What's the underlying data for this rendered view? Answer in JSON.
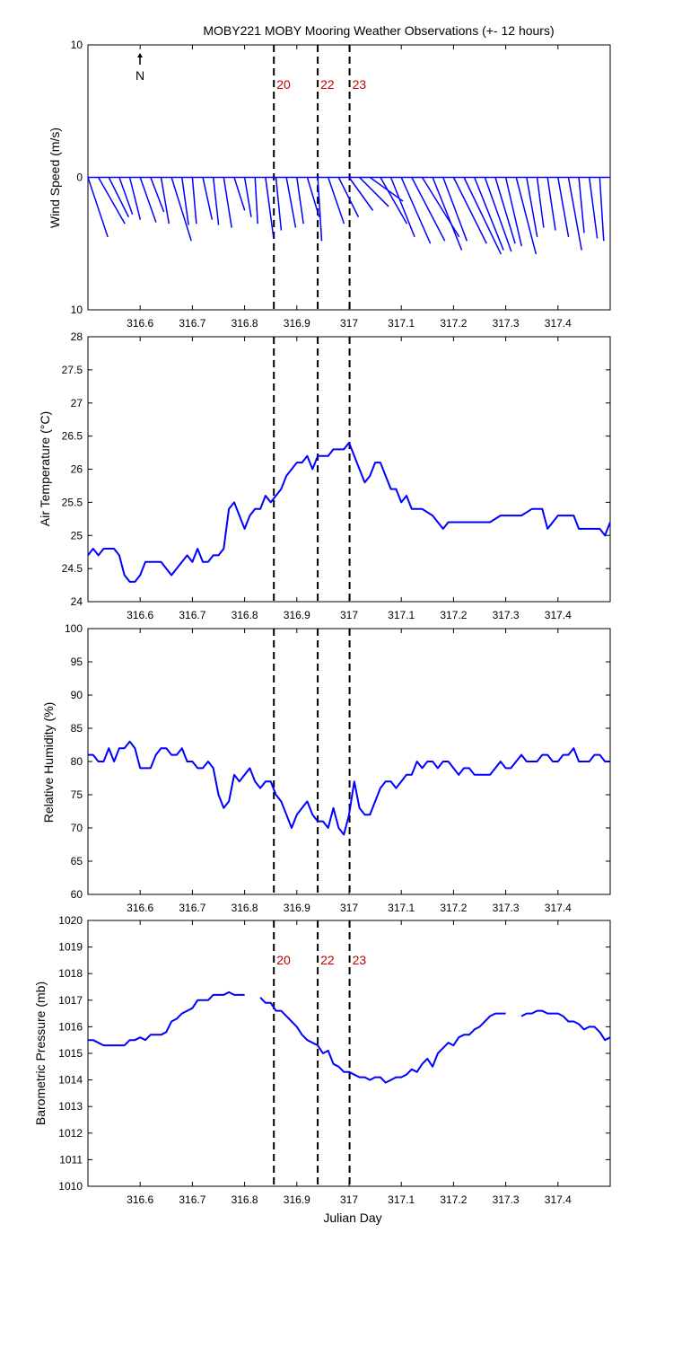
{
  "title": "MOBY221 MOBY Mooring Weather Observations (+- 12 hours)",
  "xlabel": "Julian Day",
  "north_label": "N",
  "colors": {
    "series": "#0000ff",
    "marker_text": "#c00000",
    "axes": "#000000",
    "markers": "#000000"
  },
  "chart_data": [
    {
      "id": "wind",
      "type": "line",
      "subtype": "wind-stick",
      "ylabel": "Wind Speed (m/s)",
      "xlim": [
        316.5,
        317.5
      ],
      "ylim": [
        -10,
        10
      ],
      "xticks": [
        316.6,
        316.7,
        316.8,
        316.9,
        317,
        317.1,
        317.2,
        317.3,
        317.4
      ],
      "xtick_labels": [
        "316.6",
        "316.7",
        "316.8",
        "316.9",
        "317",
        "317.1",
        "317.2",
        "317.3",
        "317.4"
      ],
      "yticks": [
        10,
        0,
        -10
      ],
      "ytick_labels": [
        "10",
        "0",
        "10"
      ],
      "markers": [
        316.856,
        316.94,
        317.001
      ],
      "marker_labels": [
        "20",
        "22",
        "23"
      ],
      "series": [
        {
          "x": [
            316.5,
            316.52,
            316.54,
            316.56,
            316.58,
            316.6,
            316.62,
            316.64,
            316.66,
            316.68,
            316.7,
            316.72,
            316.74,
            316.76,
            316.78,
            316.8,
            316.82,
            316.84,
            316.86,
            316.88,
            316.9,
            316.92,
            316.94,
            316.96,
            316.98,
            317.0,
            317.02,
            317.04,
            317.06,
            317.08,
            317.1,
            317.12,
            317.14,
            317.16,
            317.18,
            317.2,
            317.22,
            317.24,
            317.26,
            317.28,
            317.3,
            317.32,
            317.34,
            317.36,
            317.38,
            317.4,
            317.42,
            317.44,
            317.46,
            317.48
          ],
          "u": [
            1.5,
            2,
            1.5,
            1,
            0.8,
            1.2,
            1,
            0.6,
            1.5,
            0.5,
            0.3,
            0.7,
            0.4,
            0.6,
            0.8,
            0.5,
            0.2,
            0.6,
            0.4,
            0.7,
            0.5,
            0.9,
            0.3,
            1.2,
            1.5,
            1.8,
            2.2,
            2.5,
            2,
            1.8,
            2.2,
            2.5,
            2.8,
            2.2,
            1.8,
            2.5,
            2.8,
            2.2,
            2,
            1.5,
            1.2,
            1.5,
            0.8,
            0.5,
            0.6,
            0.8,
            1,
            0.4,
            0.6,
            0.3
          ],
          "v": [
            -4.5,
            -3.5,
            -3,
            -2.8,
            -3.2,
            -3.4,
            -2.6,
            -3.5,
            -4.8,
            -3.6,
            -3.5,
            -3.2,
            -3.6,
            -3.8,
            -2.5,
            -3,
            -3.5,
            -4.5,
            -4,
            -3.8,
            -3.5,
            -3,
            -4.8,
            -3.5,
            -3,
            -2.5,
            -2.2,
            -1.8,
            -3.5,
            -4.5,
            -5,
            -4.8,
            -4.5,
            -5.5,
            -4.8,
            -5,
            -5.8,
            -5.5,
            -5.6,
            -5,
            -5.2,
            -5.8,
            -4.5,
            -3.8,
            -4,
            -4.5,
            -5.5,
            -4.2,
            -4.6,
            -4.8
          ]
        }
      ]
    },
    {
      "id": "air-temperature",
      "type": "line",
      "ylabel": "Air Temperature (°C)",
      "xlim": [
        316.5,
        317.5
      ],
      "ylim": [
        24,
        28
      ],
      "xticks": [
        316.6,
        316.7,
        316.8,
        316.9,
        317,
        317.1,
        317.2,
        317.3,
        317.4
      ],
      "xtick_labels": [
        "316.6",
        "316.7",
        "316.8",
        "316.9",
        "317",
        "317.1",
        "317.2",
        "317.3",
        "317.4"
      ],
      "yticks": [
        24,
        24.5,
        25,
        25.5,
        26,
        26.5,
        27,
        27.5,
        28
      ],
      "ytick_labels": [
        "24",
        "24.5",
        "25",
        "25.5",
        "26",
        "26.5",
        "27",
        "27.5",
        "28"
      ],
      "markers": [
        316.856,
        316.94,
        317.001
      ],
      "series": [
        {
          "x": [
            316.5,
            316.51,
            316.52,
            316.53,
            316.55,
            316.56,
            316.57,
            316.58,
            316.59,
            316.6,
            316.61,
            316.62,
            316.64,
            316.65,
            316.66,
            316.67,
            316.69,
            316.7,
            316.71,
            316.72,
            316.73,
            316.74,
            316.75,
            316.76,
            316.77,
            316.78,
            316.79,
            316.8,
            316.81,
            316.82,
            316.83,
            316.84,
            316.85,
            316.86,
            316.87,
            316.88,
            316.89,
            316.9,
            316.91,
            316.92,
            316.93,
            316.94,
            316.95,
            316.96,
            316.97,
            316.98,
            316.99,
            317.0,
            317.01,
            317.02,
            317.03,
            317.04,
            317.05,
            317.06,
            317.07,
            317.08,
            317.09,
            317.1,
            317.11,
            317.12,
            317.13,
            317.14,
            317.16,
            317.17,
            317.18,
            317.19,
            317.2,
            317.22,
            317.24,
            317.26,
            317.27,
            317.29,
            317.3,
            317.32,
            317.33,
            317.35,
            317.36,
            317.37,
            317.38,
            317.4,
            317.42,
            317.43,
            317.44,
            317.46,
            317.47,
            317.48,
            317.49,
            317.5
          ],
          "y": [
            24.7,
            24.8,
            24.7,
            24.8,
            24.8,
            24.7,
            24.4,
            24.3,
            24.3,
            24.4,
            24.6,
            24.6,
            24.6,
            24.5,
            24.4,
            24.5,
            24.7,
            24.6,
            24.8,
            24.6,
            24.6,
            24.7,
            24.7,
            24.8,
            25.4,
            25.5,
            25.3,
            25.1,
            25.3,
            25.4,
            25.4,
            25.6,
            25.5,
            25.6,
            25.7,
            25.9,
            26.0,
            26.1,
            26.1,
            26.2,
            26.0,
            26.2,
            26.2,
            26.2,
            26.3,
            26.3,
            26.3,
            26.4,
            26.2,
            26.0,
            25.8,
            25.9,
            26.1,
            26.1,
            25.9,
            25.7,
            25.7,
            25.5,
            25.6,
            25.4,
            25.4,
            25.4,
            25.3,
            25.2,
            25.1,
            25.2,
            25.2,
            25.2,
            25.2,
            25.2,
            25.2,
            25.3,
            25.3,
            25.3,
            25.3,
            25.4,
            25.4,
            25.4,
            25.1,
            25.3,
            25.3,
            25.3,
            25.1,
            25.1,
            25.1,
            25.1,
            25.0,
            25.2
          ]
        }
      ]
    },
    {
      "id": "relative-humidity",
      "type": "line",
      "ylabel": "Relative Humidity (%)",
      "xlim": [
        316.5,
        317.5
      ],
      "ylim": [
        60,
        100
      ],
      "xticks": [
        316.6,
        316.7,
        316.8,
        316.9,
        317,
        317.1,
        317.2,
        317.3,
        317.4
      ],
      "xtick_labels": [
        "316.6",
        "316.7",
        "316.8",
        "316.9",
        "317",
        "317.1",
        "317.2",
        "317.3",
        "317.4"
      ],
      "yticks": [
        60,
        65,
        70,
        75,
        80,
        85,
        90,
        95,
        100
      ],
      "ytick_labels": [
        "60",
        "65",
        "70",
        "75",
        "80",
        "85",
        "90",
        "95",
        "100"
      ],
      "markers": [
        316.856,
        316.94,
        317.001
      ],
      "series": [
        {
          "x": [
            316.5,
            316.51,
            316.52,
            316.53,
            316.54,
            316.55,
            316.56,
            316.57,
            316.58,
            316.59,
            316.6,
            316.61,
            316.62,
            316.63,
            316.64,
            316.65,
            316.66,
            316.67,
            316.68,
            316.69,
            316.7,
            316.71,
            316.72,
            316.73,
            316.74,
            316.75,
            316.76,
            316.77,
            316.78,
            316.79,
            316.8,
            316.81,
            316.82,
            316.83,
            316.84,
            316.85,
            316.86,
            316.87,
            316.88,
            316.89,
            316.9,
            316.91,
            316.92,
            316.93,
            316.94,
            316.95,
            316.96,
            316.97,
            316.98,
            316.99,
            317.0,
            317.01,
            317.02,
            317.03,
            317.04,
            317.05,
            317.06,
            317.07,
            317.08,
            317.09,
            317.1,
            317.11,
            317.12,
            317.13,
            317.14,
            317.15,
            317.16,
            317.17,
            317.18,
            317.19,
            317.2,
            317.21,
            317.22,
            317.23,
            317.24,
            317.25,
            317.26,
            317.27,
            317.28,
            317.29,
            317.3,
            317.31,
            317.32,
            317.33,
            317.34,
            317.35,
            317.36,
            317.37,
            317.38,
            317.39,
            317.4,
            317.41,
            317.42,
            317.43,
            317.44,
            317.45,
            317.46,
            317.47,
            317.48,
            317.49,
            317.5
          ],
          "y": [
            81,
            81,
            80,
            80,
            82,
            80,
            82,
            82,
            83,
            82,
            79,
            79,
            79,
            81,
            82,
            82,
            81,
            81,
            82,
            80,
            80,
            79,
            79,
            80,
            79,
            75,
            73,
            74,
            78,
            77,
            78,
            79,
            77,
            76,
            77,
            77,
            75,
            74,
            72,
            70,
            72,
            73,
            74,
            72,
            71,
            71,
            70,
            73,
            70,
            69,
            72,
            77,
            73,
            72,
            72,
            74,
            76,
            77,
            77,
            76,
            77,
            78,
            78,
            80,
            79,
            80,
            80,
            79,
            80,
            80,
            79,
            78,
            79,
            79,
            78,
            78,
            78,
            78,
            79,
            80,
            79,
            79,
            80,
            81,
            80,
            80,
            80,
            81,
            81,
            80,
            80,
            81,
            81,
            82,
            80,
            80,
            80,
            81,
            81,
            80,
            80
          ]
        }
      ]
    },
    {
      "id": "barometric-pressure",
      "type": "line",
      "ylabel": "Barometric Pressure (mb)",
      "xlim": [
        316.5,
        317.5
      ],
      "ylim": [
        1010,
        1020
      ],
      "xticks": [
        316.6,
        316.7,
        316.8,
        316.9,
        317,
        317.1,
        317.2,
        317.3,
        317.4
      ],
      "xtick_labels": [
        "316.6",
        "316.7",
        "316.8",
        "316.9",
        "317",
        "317.1",
        "317.2",
        "317.3",
        "317.4"
      ],
      "yticks": [
        1010,
        1011,
        1012,
        1013,
        1014,
        1015,
        1016,
        1017,
        1018,
        1019,
        1020
      ],
      "ytick_labels": [
        "1010",
        "1011",
        "1012",
        "1013",
        "1014",
        "1015",
        "1016",
        "1017",
        "1018",
        "1019",
        "1020"
      ],
      "markers": [
        316.856,
        316.94,
        317.001
      ],
      "marker_labels": [
        "20",
        "22",
        "23"
      ],
      "series": [
        {
          "segments": [
            {
              "x": [
                316.5,
                316.51,
                316.52,
                316.53,
                316.54,
                316.55,
                316.56,
                316.57,
                316.58,
                316.59,
                316.6,
                316.61,
                316.62,
                316.63,
                316.64,
                316.65,
                316.66,
                316.67,
                316.68,
                316.69,
                316.7,
                316.71,
                316.72,
                316.73,
                316.74,
                316.75,
                316.76,
                316.77,
                316.78,
                316.79,
                316.8
              ],
              "y": [
                1015.5,
                1015.5,
                1015.4,
                1015.3,
                1015.3,
                1015.3,
                1015.3,
                1015.3,
                1015.5,
                1015.5,
                1015.6,
                1015.5,
                1015.7,
                1015.7,
                1015.7,
                1015.8,
                1016.2,
                1016.3,
                1016.5,
                1016.6,
                1016.7,
                1017.0,
                1017.0,
                1017.0,
                1017.2,
                1017.2,
                1017.2,
                1017.3,
                1017.2,
                1017.2,
                1017.2
              ]
            },
            {
              "x": [
                316.83,
                316.84,
                316.85,
                316.86,
                316.87,
                316.88,
                316.89,
                316.9,
                316.91,
                316.92,
                316.93,
                316.94,
                316.95,
                316.96,
                316.97,
                316.98,
                316.99,
                317.0,
                317.01,
                317.02,
                317.03,
                317.04,
                317.05,
                317.06,
                317.07,
                317.08,
                317.09,
                317.1,
                317.11,
                317.12,
                317.13,
                317.14,
                317.15,
                317.16,
                317.17,
                317.18,
                317.19,
                317.2,
                317.21,
                317.22,
                317.23,
                317.24,
                317.25,
                317.26,
                317.27,
                317.28,
                317.29,
                317.3
              ],
              "y": [
                1017.1,
                1016.9,
                1016.9,
                1016.6,
                1016.6,
                1016.4,
                1016.2,
                1016.0,
                1015.7,
                1015.5,
                1015.4,
                1015.3,
                1015.0,
                1015.1,
                1014.6,
                1014.5,
                1014.3,
                1014.3,
                1014.2,
                1014.1,
                1014.1,
                1014.0,
                1014.1,
                1014.1,
                1013.9,
                1014.0,
                1014.1,
                1014.1,
                1014.2,
                1014.4,
                1014.3,
                1014.6,
                1014.8,
                1014.5,
                1015.0,
                1015.2,
                1015.4,
                1015.3,
                1015.6,
                1015.7,
                1015.7,
                1015.9,
                1016.0,
                1016.2,
                1016.4,
                1016.5,
                1016.5,
                1016.5
              ]
            },
            {
              "x": [
                317.33,
                317.34,
                317.35,
                317.36,
                317.37,
                317.38,
                317.39,
                317.4,
                317.41,
                317.42,
                317.43,
                317.44,
                317.45,
                317.46,
                317.47,
                317.48,
                317.49,
                317.5
              ],
              "y": [
                1016.4,
                1016.5,
                1016.5,
                1016.6,
                1016.6,
                1016.5,
                1016.5,
                1016.5,
                1016.4,
                1016.2,
                1016.2,
                1016.1,
                1015.9,
                1016.0,
                1016.0,
                1015.8,
                1015.5,
                1015.6
              ]
            }
          ]
        }
      ]
    }
  ]
}
